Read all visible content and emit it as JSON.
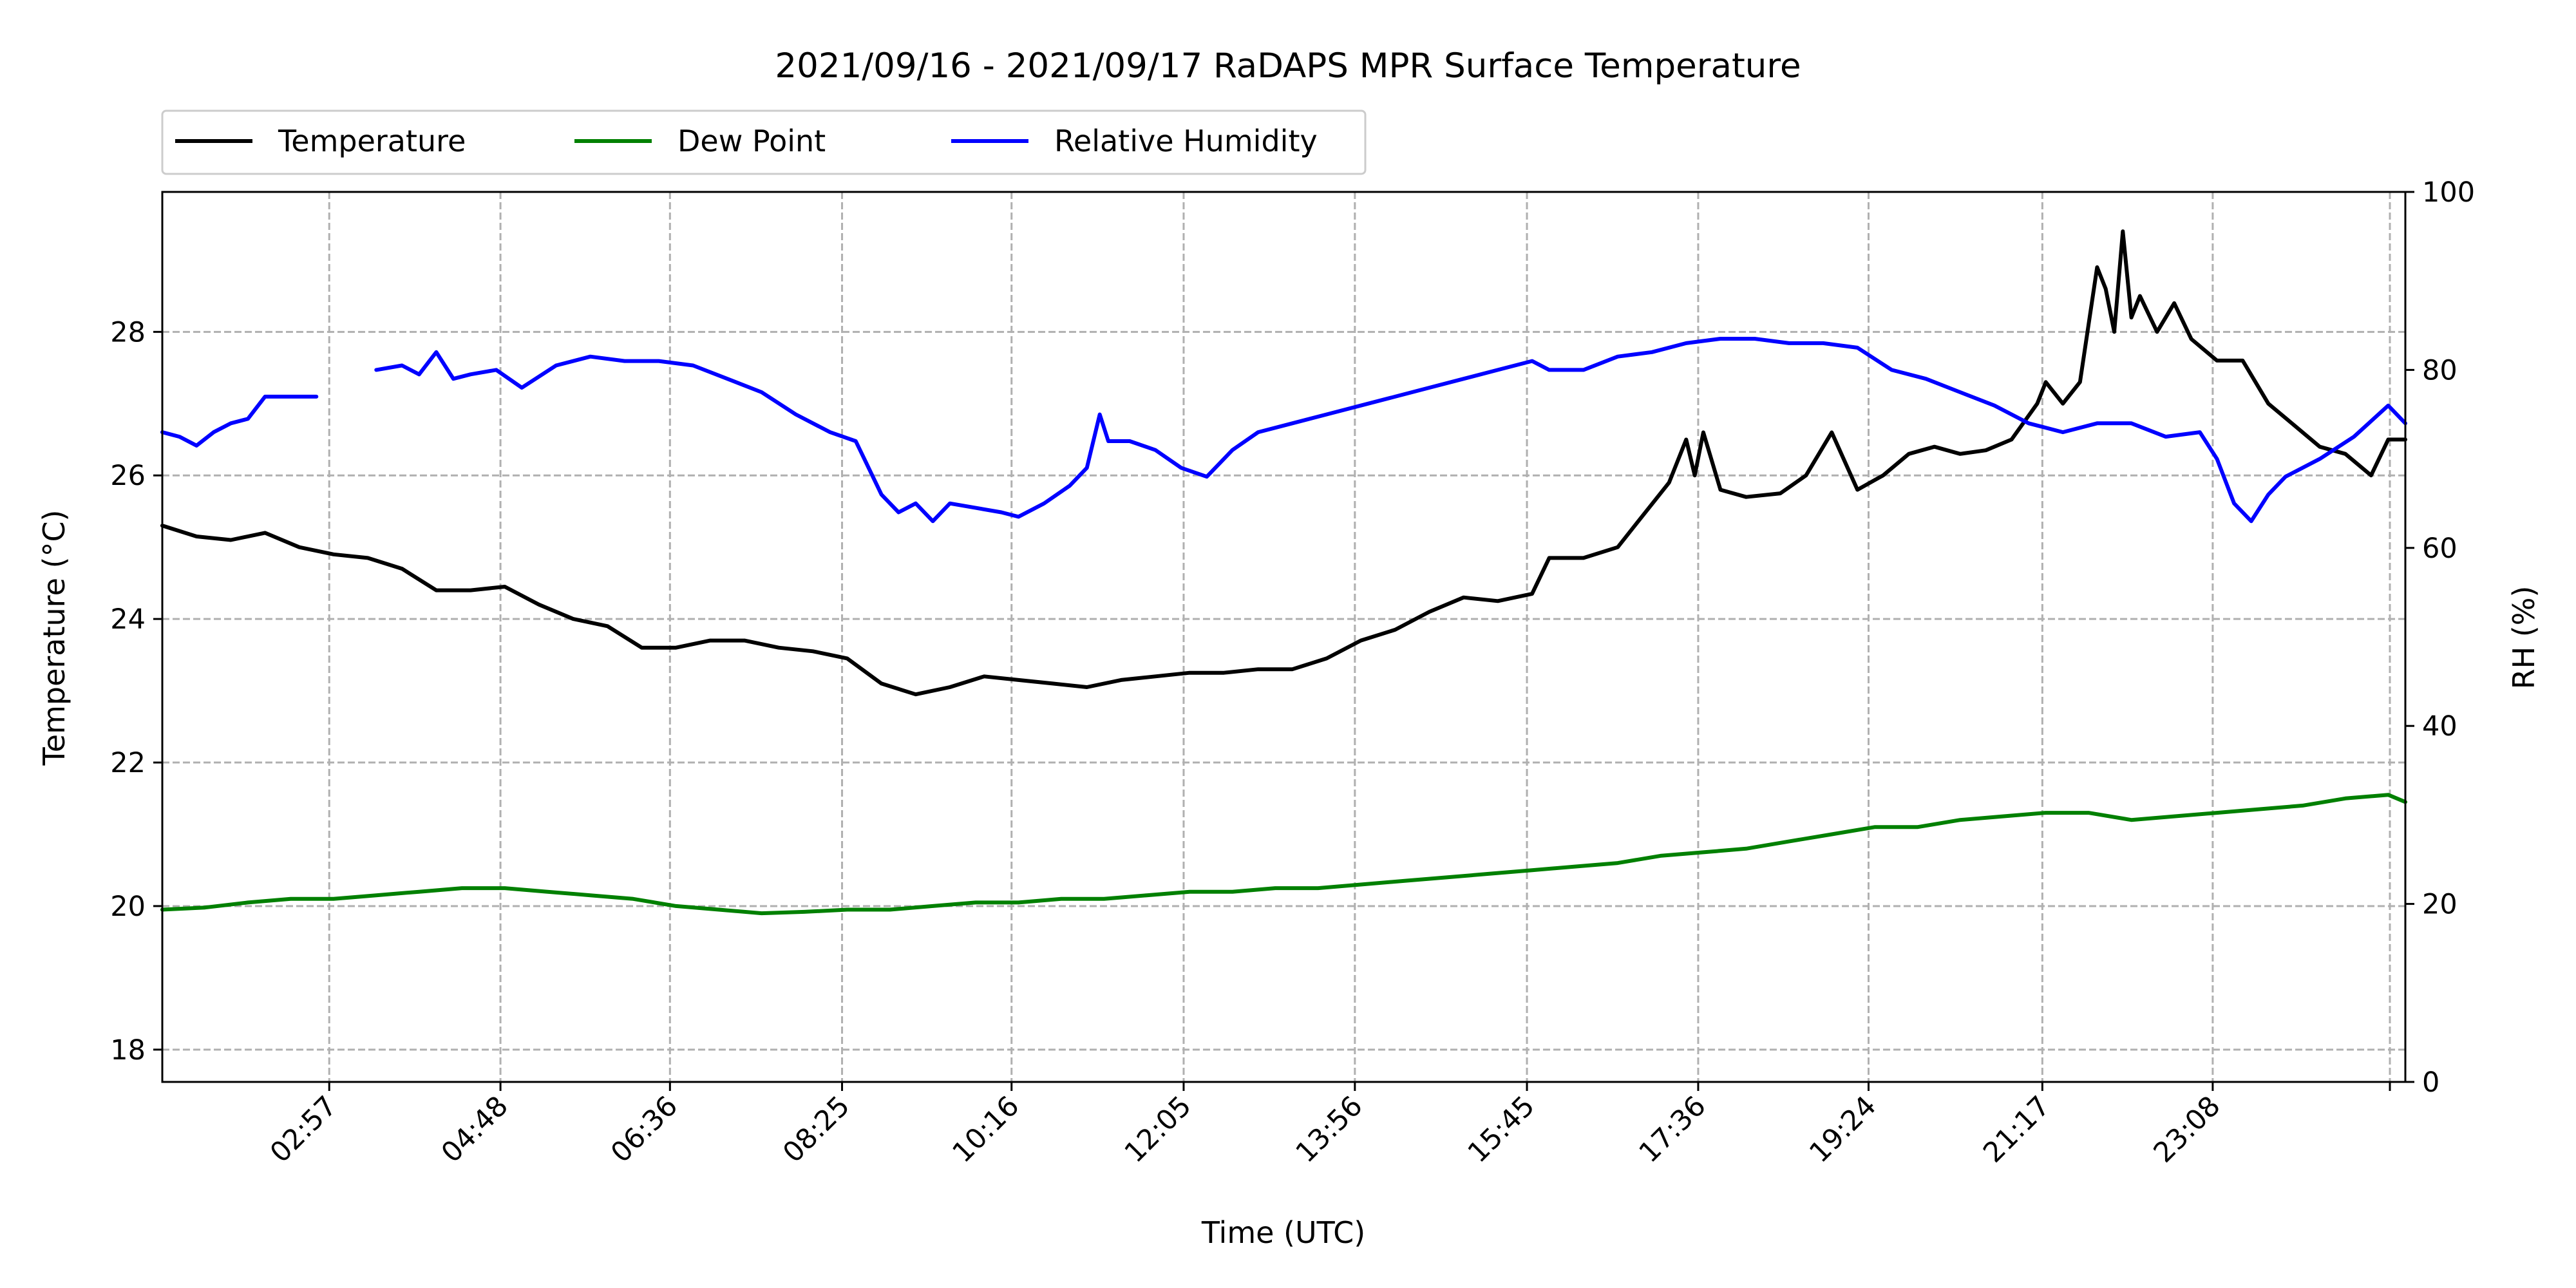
{
  "chart_data": {
    "type": "line",
    "title": "2021/09/16 - 2021/09/17 RaDAPS MPR Surface Temperature",
    "xlabel": "Time (UTC)",
    "ylabel_left": "Temperature ($^\\circ$C)",
    "ylabel_left_display": "Temperature (°C)",
    "ylabel_right": "RH (%)",
    "xlim_hours": [
      1.0,
      27.2
    ],
    "ylim_left": [
      17.55,
      29.95
    ],
    "ylim_right": [
      0,
      100
    ],
    "x_ticks": [
      {
        "label": "02:57",
        "hour": 2.95
      },
      {
        "label": "04:48",
        "hour": 4.95
      },
      {
        "label": "06:36",
        "hour": 6.93
      },
      {
        "label": "08:25",
        "hour": 8.94
      },
      {
        "label": "10:16",
        "hour": 10.92
      },
      {
        "label": "12:05",
        "hour": 12.93
      },
      {
        "label": "13:56",
        "hour": 14.93
      },
      {
        "label": "15:45",
        "hour": 16.94
      },
      {
        "label": "17:36",
        "hour": 18.94
      },
      {
        "label": "19:24",
        "hour": 20.93
      },
      {
        "label": "21:17",
        "hour": 22.96
      },
      {
        "label": "23:08",
        "hour": 24.95
      }
    ],
    "y_ticks_left": [
      18,
      20,
      22,
      24,
      26,
      28
    ],
    "y_ticks_right": [
      0,
      20,
      40,
      60,
      80,
      100
    ],
    "grid": true,
    "legend_position": "above-top-left",
    "series": [
      {
        "name": "Temperature",
        "axis": "left",
        "color": "#000000",
        "x": [
          1.0,
          1.4,
          1.8,
          2.2,
          2.6,
          3.0,
          3.4,
          3.8,
          4.2,
          4.6,
          5.0,
          5.4,
          5.8,
          6.2,
          6.6,
          7.0,
          7.4,
          7.8,
          8.2,
          8.6,
          9.0,
          9.4,
          9.8,
          10.2,
          10.6,
          11.0,
          11.4,
          11.8,
          12.2,
          12.6,
          13.0,
          13.4,
          13.8,
          14.2,
          14.6,
          15.0,
          15.4,
          15.8,
          16.2,
          16.6,
          17.0,
          17.2,
          17.6,
          18.0,
          18.2,
          18.6,
          18.8,
          18.9,
          19.0,
          19.2,
          19.5,
          19.9,
          20.2,
          20.5,
          20.8,
          21.1,
          21.4,
          21.7,
          22.0,
          22.3,
          22.6,
          22.9,
          23.0,
          23.2,
          23.4,
          23.6,
          23.7,
          23.8,
          23.9,
          24.0,
          24.1,
          24.3,
          24.5,
          24.7,
          25.0,
          25.3,
          25.6,
          25.9,
          26.2,
          26.5,
          26.8,
          27.0,
          27.2
        ],
        "y": [
          25.3,
          25.15,
          25.1,
          25.2,
          25.0,
          24.9,
          24.85,
          24.7,
          24.4,
          24.4,
          24.45,
          24.2,
          24.0,
          23.9,
          23.6,
          23.6,
          23.7,
          23.7,
          23.6,
          23.55,
          23.45,
          23.1,
          22.95,
          23.05,
          23.2,
          23.15,
          23.1,
          23.05,
          23.15,
          23.2,
          23.25,
          23.25,
          23.3,
          23.3,
          23.45,
          23.7,
          23.85,
          24.1,
          24.3,
          24.25,
          24.35,
          24.85,
          24.85,
          25.0,
          25.3,
          25.9,
          26.5,
          26.0,
          26.6,
          25.8,
          25.7,
          25.75,
          26.0,
          26.6,
          25.8,
          26.0,
          26.3,
          26.4,
          26.3,
          26.35,
          26.5,
          27.0,
          27.3,
          27.0,
          27.3,
          28.9,
          28.6,
          28.0,
          29.4,
          28.2,
          28.5,
          28.0,
          28.4,
          27.9,
          27.6,
          27.6,
          27.0,
          26.7,
          26.4,
          26.3,
          26.0,
          26.5,
          26.5
        ]
      },
      {
        "name": "Dew Point",
        "axis": "left",
        "color": "#008000",
        "x": [
          1.0,
          1.5,
          2.0,
          2.5,
          3.0,
          3.5,
          4.0,
          4.5,
          5.0,
          5.5,
          6.0,
          6.5,
          7.0,
          7.5,
          8.0,
          8.5,
          9.0,
          9.5,
          10.0,
          10.5,
          11.0,
          11.5,
          12.0,
          12.5,
          13.0,
          13.5,
          14.0,
          14.5,
          15.0,
          15.5,
          16.0,
          16.5,
          17.0,
          17.5,
          18.0,
          18.5,
          19.0,
          19.5,
          20.0,
          20.5,
          21.0,
          21.5,
          22.0,
          22.5,
          23.0,
          23.5,
          24.0,
          24.5,
          25.0,
          25.5,
          26.0,
          26.5,
          27.0,
          27.2
        ],
        "y": [
          19.95,
          19.98,
          20.05,
          20.1,
          20.1,
          20.15,
          20.2,
          20.25,
          20.25,
          20.2,
          20.15,
          20.1,
          20.0,
          19.95,
          19.9,
          19.92,
          19.95,
          19.95,
          20.0,
          20.05,
          20.05,
          20.1,
          20.1,
          20.15,
          20.2,
          20.2,
          20.25,
          20.25,
          20.3,
          20.35,
          20.4,
          20.45,
          20.5,
          20.55,
          20.6,
          20.7,
          20.75,
          20.8,
          20.9,
          21.0,
          21.1,
          21.1,
          21.2,
          21.25,
          21.3,
          21.3,
          21.2,
          21.25,
          21.3,
          21.35,
          21.4,
          21.5,
          21.55,
          21.45
        ]
      },
      {
        "name": "Relative Humidity",
        "axis": "right",
        "color": "#0000ff",
        "segments": [
          {
            "x": [
              1.0,
              1.2,
              1.4,
              1.6,
              1.8,
              2.0,
              2.2,
              2.8
            ],
            "y": [
              73,
              72.5,
              71.5,
              73,
              74,
              74.5,
              77,
              77
            ]
          },
          {
            "x": [
              3.5,
              3.8,
              4.0,
              4.2,
              4.4,
              4.6,
              4.9,
              5.2,
              5.6,
              6.0,
              6.4,
              6.8,
              7.2,
              7.6,
              8.0,
              8.4,
              8.8,
              9.1,
              9.2,
              9.4,
              9.6,
              9.8,
              10.0,
              10.2,
              10.5,
              10.8,
              11.0,
              11.3,
              11.6,
              11.8,
              11.95,
              12.05,
              12.3,
              12.6,
              12.9,
              13.2,
              13.5,
              13.8,
              14.2,
              14.6,
              15.0,
              15.4,
              15.8,
              16.2,
              16.6,
              17.0,
              17.2,
              17.6,
              18.0,
              18.4,
              18.8,
              19.2,
              19.6,
              20.0,
              20.4,
              20.8,
              21.2,
              21.6,
              22.0,
              22.4,
              22.8,
              23.2,
              23.6,
              24.0,
              24.4,
              24.8,
              25.0,
              25.2,
              25.4,
              25.6,
              25.8,
              26.2,
              26.6,
              27.0,
              27.2
            ],
            "y": [
              80,
              80.5,
              79.5,
              82,
              79,
              79.5,
              80,
              78,
              80.5,
              81.5,
              81,
              81,
              80.5,
              79,
              77.5,
              75,
              73,
              72,
              70,
              66,
              64,
              65,
              63,
              65,
              64.5,
              64,
              63.5,
              65,
              67,
              69,
              75,
              72,
              72,
              71,
              69,
              68,
              71,
              73,
              74,
              75,
              76,
              77,
              78,
              79,
              80,
              81,
              80,
              80,
              81.5,
              82,
              83,
              83.5,
              83.5,
              83,
              83,
              82.5,
              80,
              79,
              77.5,
              76,
              74,
              73,
              74,
              74,
              72.5,
              73,
              70,
              65,
              63,
              66,
              68,
              70,
              72.5,
              76,
              74
            ]
          }
        ]
      }
    ]
  }
}
